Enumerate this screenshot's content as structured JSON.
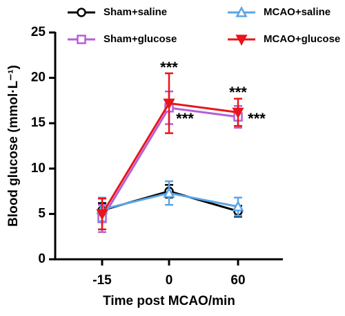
{
  "chart_data": {
    "type": "line",
    "x_label": "Time post MCAO/min",
    "y_label": "Blood glucose (mmol·L⁻¹)",
    "categories": [
      "-15",
      "0",
      "60"
    ],
    "ylim": [
      0,
      25
    ],
    "yticks": [
      0,
      5,
      10,
      15,
      20,
      25
    ],
    "series": [
      {
        "name": "Sham+saline",
        "color": "#000000",
        "marker": "circle",
        "values": [
          5.4,
          7.5,
          5.3
        ],
        "errors": [
          0.8,
          0.7,
          0.6
        ]
      },
      {
        "name": "Sham+glucose",
        "color": "#b45fd4",
        "marker": "square",
        "values": [
          4.5,
          16.7,
          15.7
        ],
        "errors": [
          1.5,
          1.8,
          1.2
        ]
      },
      {
        "name": "MCAO+saline",
        "color": "#5aa5e8",
        "marker": "triangle",
        "values": [
          5.5,
          7.3,
          5.8
        ],
        "errors": [
          1.3,
          1.3,
          1.0
        ]
      },
      {
        "name": "MCAO+glucose",
        "color": "#e8151b",
        "marker": "triangle-down",
        "values": [
          5.0,
          17.2,
          16.2
        ],
        "errors": [
          1.7,
          3.3,
          1.5
        ]
      }
    ],
    "annotations": [
      "***",
      "***",
      "***",
      "***"
    ]
  }
}
